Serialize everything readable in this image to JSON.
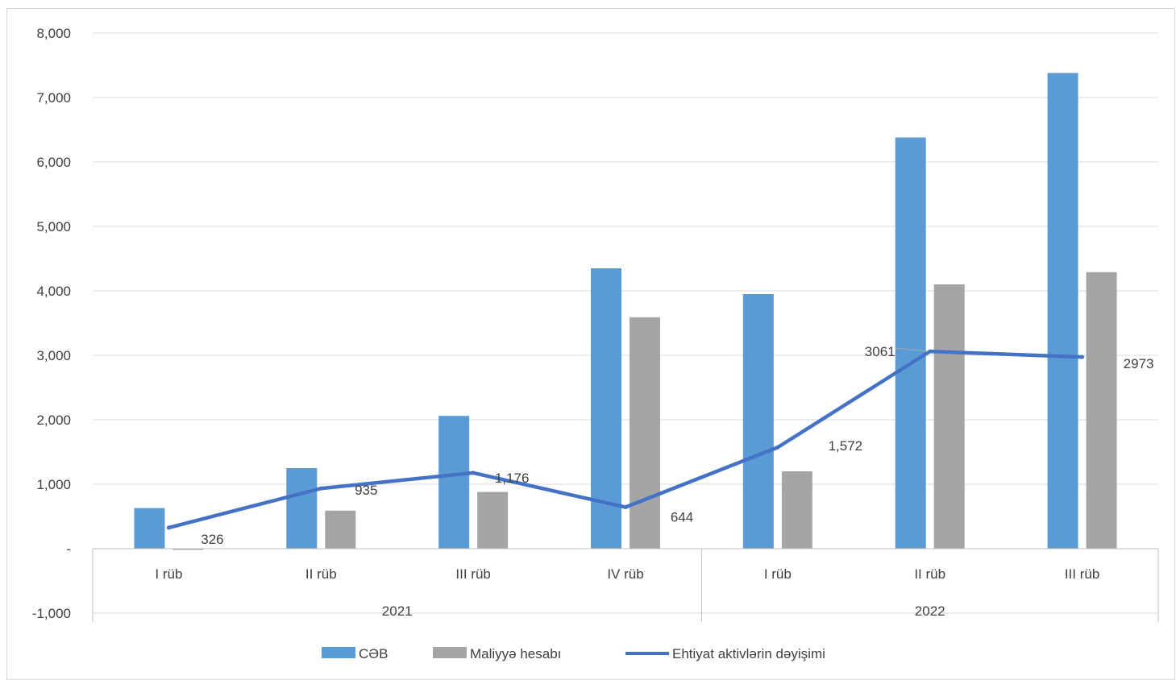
{
  "chart_data": {
    "type": "bar",
    "title": "",
    "xlabel": "",
    "ylabel": "",
    "ylim": [
      -1000,
      8000
    ],
    "yticks": [
      -1000,
      0,
      1000,
      2000,
      3000,
      4000,
      5000,
      6000,
      7000,
      8000
    ],
    "ytick_labels": [
      "-1,000",
      "-",
      "1,000",
      "2,000",
      "3,000",
      "4,000",
      "5,000",
      "6,000",
      "7,000",
      "8,000"
    ],
    "grid": true,
    "legend_position": "bottom",
    "categories": [
      "I rüb",
      "II rüb",
      "III rüb",
      "IV rüb",
      "I rüb",
      "II rüb",
      "III rüb"
    ],
    "groups": [
      {
        "label": "2021",
        "count": 4
      },
      {
        "label": "2022",
        "count": 3
      }
    ],
    "series": [
      {
        "name": "CƏB",
        "type": "bar",
        "color": "#5b9bd5",
        "values": [
          630,
          1250,
          2060,
          4350,
          3950,
          6380,
          7380
        ]
      },
      {
        "name": "Maliyyə hesabı",
        "type": "bar",
        "color": "#a5a5a5",
        "values": [
          -10,
          590,
          880,
          3590,
          1200,
          4100,
          4290
        ]
      },
      {
        "name": "Ehtiyat aktivlərin dəyişimi",
        "type": "line",
        "color": "#4472c4",
        "values": [
          326,
          935,
          1176,
          644,
          1572,
          3061,
          2973
        ]
      }
    ],
    "data_labels": [
      "326",
      "935",
      "1,176",
      "644",
      "1,572",
      "3061",
      "2973"
    ]
  }
}
